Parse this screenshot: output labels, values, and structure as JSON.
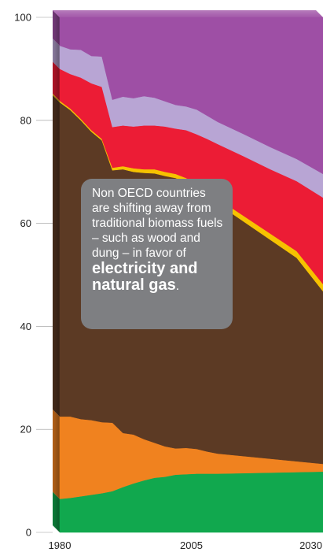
{
  "chart_data": {
    "type": "area",
    "stacked": true,
    "x": [
      1980,
      1982,
      1984,
      1986,
      1988,
      1990,
      1992,
      1994,
      1996,
      1998,
      2000,
      2002,
      2004,
      2006,
      2008,
      2010,
      2015,
      2020,
      2025,
      2030
    ],
    "x_ticks": [
      "1980",
      "2005",
      "2030"
    ],
    "y_ticks": [
      "0",
      "20",
      "40",
      "60",
      "80",
      "100"
    ],
    "ylim": [
      0,
      100
    ],
    "xlim": [
      1980,
      2030
    ],
    "series": [
      {
        "color": "#11a84e",
        "values": [
          6.5,
          6.7,
          7,
          7.3,
          7.6,
          8,
          8.8,
          9.5,
          10.1,
          10.6,
          10.8,
          11.2,
          11.3,
          11.4,
          11.4,
          11.4,
          11.5,
          11.6,
          11.7,
          11.8
        ]
      },
      {
        "color": "#f0821f",
        "values": [
          16,
          15.8,
          15,
          14.5,
          13.8,
          13.3,
          10.5,
          9.5,
          8,
          6.8,
          5.9,
          5.1,
          5.1,
          4.8,
          4.3,
          3.9,
          3.3,
          2.7,
          2.1,
          1.5
        ]
      },
      {
        "color": "#5c3a24",
        "values": [
          61,
          59.5,
          58,
          56,
          54.7,
          49,
          51.2,
          51,
          51.7,
          52.3,
          52.5,
          52.5,
          51.5,
          50.5,
          49.5,
          48.5,
          45.5,
          42.5,
          39.5,
          33.5
        ]
      },
      {
        "color": "#f6c200",
        "values": [
          0.3,
          0.3,
          0.3,
          0.3,
          0.3,
          0.5,
          0.6,
          0.7,
          0.7,
          0.8,
          0.8,
          0.8,
          0.9,
          0.9,
          1.0,
          1.0,
          1.1,
          1.2,
          1.3,
          1.4
        ]
      },
      {
        "color": "#ec1c35",
        "values": [
          6.2,
          6.7,
          8,
          9.1,
          10.1,
          7.9,
          7.9,
          8.1,
          8.5,
          8.5,
          8.8,
          8.8,
          9.3,
          9.7,
          10.2,
          10.6,
          11.6,
          12.5,
          13.6,
          16.8
        ]
      },
      {
        "color": "#b8a5d4",
        "values": [
          4.5,
          4.8,
          5.4,
          5.3,
          5.9,
          5.3,
          5.6,
          5.5,
          5.7,
          5.4,
          4.9,
          4.6,
          4.6,
          4.8,
          4.5,
          4.3,
          4.3,
          4.3,
          4.3,
          4.6
        ]
      },
      {
        "color": "#9e4fa5",
        "values": [
          5.5,
          6.2,
          6.3,
          7.5,
          7.6,
          16,
          15.4,
          15.7,
          15.3,
          15.6,
          16.3,
          17,
          17.3,
          17.9,
          19.1,
          20.3,
          22.7,
          25.2,
          27.5,
          30.4
        ]
      }
    ]
  },
  "annotation": {
    "text": "Non OECD countries are shifting away from traditional biomass fuels – such as wood and dung – in favor of",
    "highlight": "electricity and natural gas",
    "suffix": "."
  },
  "colors": {
    "annotation_bg": "#7e7f82",
    "annotation_text": "#ffffff",
    "axis_text": "#222222"
  }
}
